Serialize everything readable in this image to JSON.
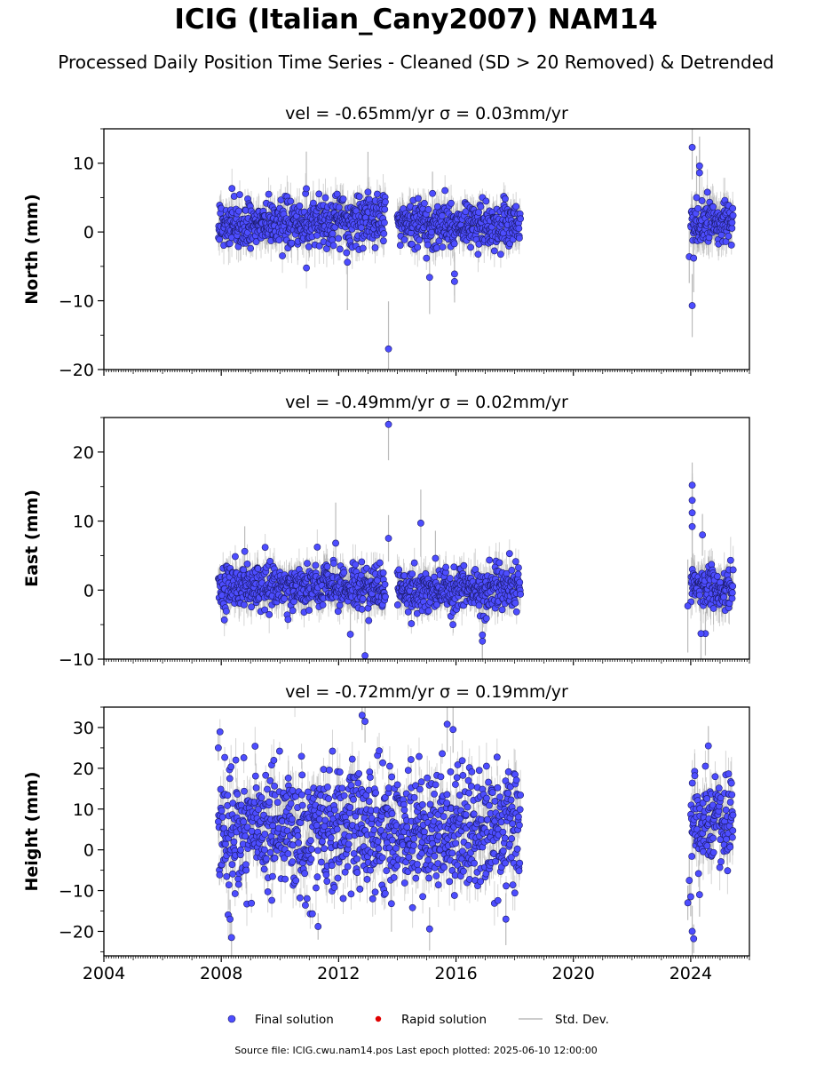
{
  "title": "ICIG (Italian_Cany2007) NAM14",
  "subtitle": "Processed Daily Position Time Series - Cleaned (SD > 20 Removed) & Detrended",
  "footer": "Source file: ICIG.cwu.nam14.pos  Last epoch plotted: 2025-06-10 12:00:00",
  "colors": {
    "final": "#4d4dff",
    "rapid": "#e00000",
    "stddev": "#bbbbbb"
  },
  "chart_data": [
    {
      "type": "scatter",
      "panel_title": "vel = -0.65mm/yr   σ = 0.03mm/yr",
      "ylabel": "North (mm)",
      "xlim": [
        2004,
        2026
      ],
      "ylim": [
        -20,
        15
      ],
      "yticks": [
        -20,
        -10,
        0,
        10
      ],
      "xticks": [
        "2004",
        "2008",
        "2012",
        "2016",
        "2020",
        "2024"
      ],
      "show_xtick_labels": false,
      "segments": [
        {
          "x": [
            2007.9,
            2011.0
          ],
          "center": 1.0,
          "spread": 1.7,
          "err": 2.2
        },
        {
          "x": [
            2011.0,
            2013.6
          ],
          "center": 1.8,
          "spread": 1.8,
          "err": 2.4
        },
        {
          "x": [
            2014.0,
            2018.2
          ],
          "center": 1.0,
          "spread": 1.6,
          "err": 2.2
        },
        {
          "x": [
            2024.0,
            2025.45
          ],
          "center": 1.5,
          "spread": 1.7,
          "err": 2.6
        }
      ],
      "outliers": [
        [
          2013.7,
          -17.0
        ],
        [
          2015.1,
          -6.6
        ],
        [
          2015.95,
          -6.1
        ],
        [
          2015.95,
          -7.2
        ],
        [
          2012.3,
          -4.4
        ],
        [
          2013.0,
          5.8
        ],
        [
          2010.9,
          6.3
        ],
        [
          2024.05,
          12.3
        ],
        [
          2024.05,
          -10.7
        ],
        [
          2023.95,
          -3.6
        ],
        [
          2024.1,
          -3.8
        ],
        [
          2024.3,
          9.6
        ],
        [
          2024.3,
          8.6
        ],
        [
          2024.2,
          5.0
        ],
        [
          2015.2,
          5.6
        ]
      ]
    },
    {
      "type": "scatter",
      "panel_title": "vel = -0.49mm/yr   σ = 0.02mm/yr",
      "ylabel": "East (mm)",
      "xlim": [
        2004,
        2026
      ],
      "ylim": [
        -10,
        25
      ],
      "yticks": [
        -10,
        0,
        10,
        20
      ],
      "xticks": [
        "2004",
        "2008",
        "2012",
        "2016",
        "2020",
        "2024"
      ],
      "show_xtick_labels": false,
      "segments": [
        {
          "x": [
            2007.9,
            2013.6
          ],
          "center": 0.5,
          "spread": 1.6,
          "err": 2.2
        },
        {
          "x": [
            2014.0,
            2018.2
          ],
          "center": 0.0,
          "spread": 1.6,
          "err": 2.2
        },
        {
          "x": [
            2024.0,
            2025.45
          ],
          "center": 0.5,
          "spread": 1.5,
          "err": 2.6
        }
      ],
      "outliers": [
        [
          2013.7,
          24.0
        ],
        [
          2013.7,
          7.5
        ],
        [
          2014.8,
          9.7
        ],
        [
          2012.9,
          -9.5
        ],
        [
          2012.4,
          -6.4
        ],
        [
          2011.9,
          6.8
        ],
        [
          2016.9,
          -7.4
        ],
        [
          2016.9,
          -6.5
        ],
        [
          2024.05,
          15.2
        ],
        [
          2024.05,
          13.0
        ],
        [
          2024.05,
          11.2
        ],
        [
          2024.05,
          9.2
        ],
        [
          2024.4,
          8.0
        ],
        [
          2024.5,
          -6.3
        ],
        [
          2024.35,
          -6.3
        ],
        [
          2023.9,
          -2.3
        ],
        [
          2015.3,
          4.6
        ],
        [
          2008.8,
          5.6
        ]
      ]
    },
    {
      "type": "scatter",
      "panel_title": "vel = -0.72mm/yr   σ = 0.19mm/yr",
      "ylabel": "Height (mm)",
      "xlim": [
        2004,
        2026
      ],
      "ylim": [
        -26,
        35
      ],
      "yticks": [
        -20,
        -10,
        0,
        10,
        20,
        30
      ],
      "xticks": [
        "2004",
        "2008",
        "2012",
        "2016",
        "2020",
        "2024"
      ],
      "show_xtick_labels": true,
      "segments": [
        {
          "x": [
            2007.9,
            2018.2
          ],
          "center": 5.0,
          "spread": 7.5,
          "err": 4.5
        },
        {
          "x": [
            2024.0,
            2025.45
          ],
          "center": 6.0,
          "spread": 6.0,
          "err": 5.0
        }
      ],
      "outliers": [
        [
          2008.35,
          -21.5
        ],
        [
          2008.3,
          -17.0
        ],
        [
          2012.8,
          33.0
        ],
        [
          2012.9,
          31.5
        ],
        [
          2015.7,
          30.8
        ],
        [
          2015.9,
          29.5
        ],
        [
          2011.3,
          -18.8
        ],
        [
          2015.1,
          -19.4
        ],
        [
          2023.9,
          -13.0
        ],
        [
          2023.95,
          -7.5
        ],
        [
          2024.05,
          -20.0
        ],
        [
          2024.1,
          -21.8
        ],
        [
          2024.0,
          -11.5
        ],
        [
          2024.3,
          -11.0
        ],
        [
          2024.6,
          25.5
        ],
        [
          2007.9,
          25.0
        ],
        [
          2013.8,
          -13.2
        ],
        [
          2017.7,
          -17.0
        ]
      ]
    }
  ],
  "legend": {
    "items": [
      {
        "label": "Final solution",
        "kind": "dot",
        "color": "#4d4dff"
      },
      {
        "label": "Rapid solution",
        "kind": "dot",
        "color": "#e00000"
      },
      {
        "label": "Std. Dev.",
        "kind": "line",
        "color": "#bbbbbb"
      }
    ]
  }
}
